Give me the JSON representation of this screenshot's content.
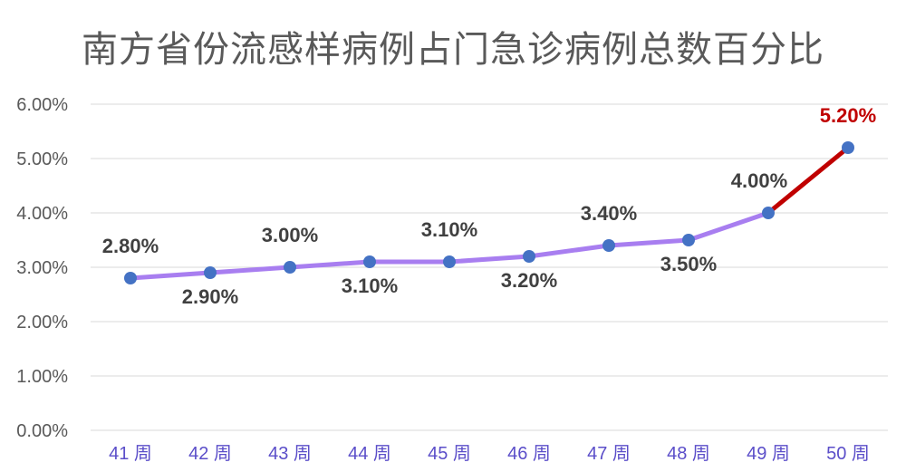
{
  "chart_data": {
    "type": "line",
    "title": "南方省份流感样病例占门急诊病例总数百分比",
    "categories": [
      "41 周",
      "42 周",
      "43 周",
      "44 周",
      "45 周",
      "46 周",
      "47 周",
      "48 周",
      "49 周",
      "50 周"
    ],
    "values": [
      2.8,
      2.9,
      3.0,
      3.1,
      3.1,
      3.2,
      3.4,
      3.5,
      4.0,
      5.2
    ],
    "data_labels": [
      "2.80%",
      "2.90%",
      "3.00%",
      "3.10%",
      "3.10%",
      "3.20%",
      "3.40%",
      "3.50%",
      "4.00%",
      "5.20%"
    ],
    "yticks": [
      "0.00%",
      "1.00%",
      "2.00%",
      "3.00%",
      "4.00%",
      "5.00%",
      "6.00%"
    ],
    "ylim": [
      0,
      6
    ],
    "grid": true,
    "colors": {
      "line": "#a87ef0",
      "highlight_line": "#c00000",
      "marker": "#4472c4",
      "highlight_label": "#c00000",
      "x_tick": "#5b4ec9"
    },
    "highlight_last_segment": true
  }
}
